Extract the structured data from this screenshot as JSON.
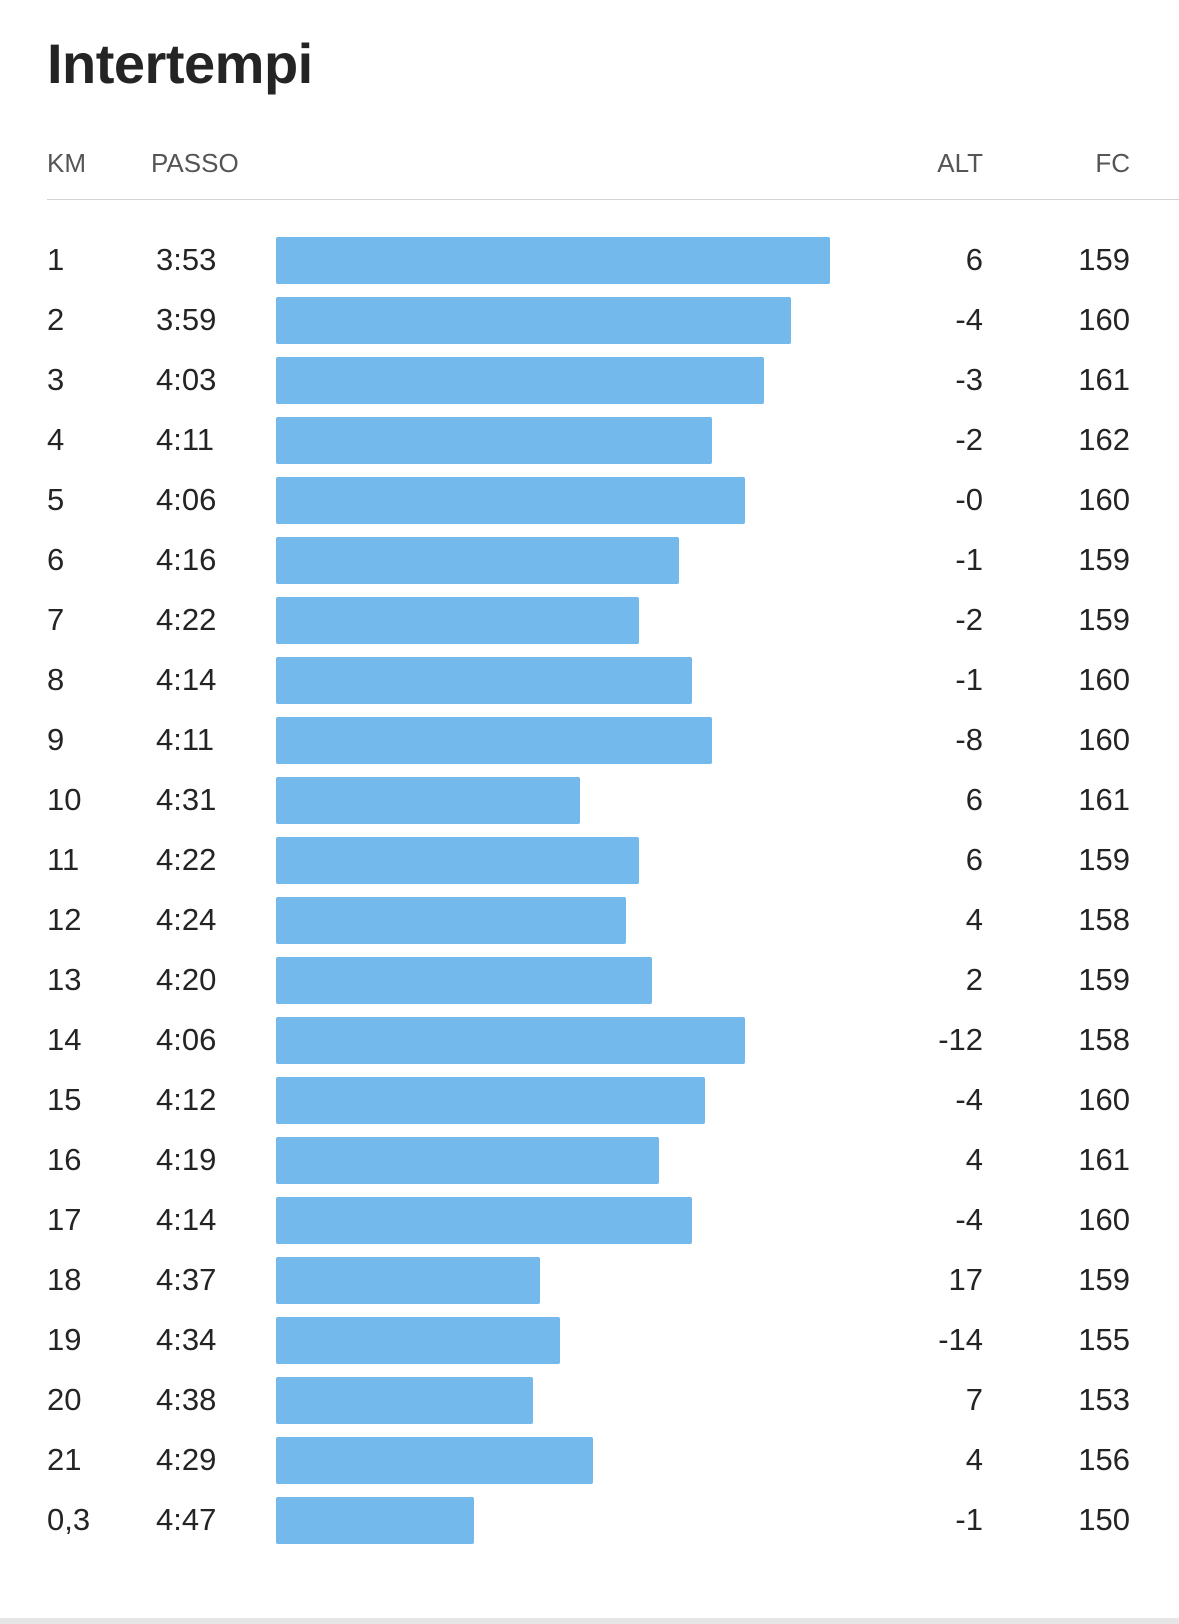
{
  "title": "Intertempi",
  "columns": {
    "km": "KM",
    "pace": "PASSO",
    "alt": "ALT",
    "hr": "FC"
  },
  "bar_color": "#74b9eb",
  "splits": [
    {
      "km": "1",
      "pace": "3:53",
      "pace_seconds": 233,
      "alt": "6",
      "hr": "159"
    },
    {
      "km": "2",
      "pace": "3:59",
      "pace_seconds": 239,
      "alt": "-4",
      "hr": "160"
    },
    {
      "km": "3",
      "pace": "4:03",
      "pace_seconds": 243,
      "alt": "-3",
      "hr": "161"
    },
    {
      "km": "4",
      "pace": "4:11",
      "pace_seconds": 251,
      "alt": "-2",
      "hr": "162"
    },
    {
      "km": "5",
      "pace": "4:06",
      "pace_seconds": 246,
      "alt": "-0",
      "hr": "160"
    },
    {
      "km": "6",
      "pace": "4:16",
      "pace_seconds": 256,
      "alt": "-1",
      "hr": "159"
    },
    {
      "km": "7",
      "pace": "4:22",
      "pace_seconds": 262,
      "alt": "-2",
      "hr": "159"
    },
    {
      "km": "8",
      "pace": "4:14",
      "pace_seconds": 254,
      "alt": "-1",
      "hr": "160"
    },
    {
      "km": "9",
      "pace": "4:11",
      "pace_seconds": 251,
      "alt": "-8",
      "hr": "160"
    },
    {
      "km": "10",
      "pace": "4:31",
      "pace_seconds": 271,
      "alt": "6",
      "hr": "161"
    },
    {
      "km": "11",
      "pace": "4:22",
      "pace_seconds": 262,
      "alt": "6",
      "hr": "159"
    },
    {
      "km": "12",
      "pace": "4:24",
      "pace_seconds": 264,
      "alt": "4",
      "hr": "158"
    },
    {
      "km": "13",
      "pace": "4:20",
      "pace_seconds": 260,
      "alt": "2",
      "hr": "159"
    },
    {
      "km": "14",
      "pace": "4:06",
      "pace_seconds": 246,
      "alt": "-12",
      "hr": "158"
    },
    {
      "km": "15",
      "pace": "4:12",
      "pace_seconds": 252,
      "alt": "-4",
      "hr": "160"
    },
    {
      "km": "16",
      "pace": "4:19",
      "pace_seconds": 259,
      "alt": "4",
      "hr": "161"
    },
    {
      "km": "17",
      "pace": "4:14",
      "pace_seconds": 254,
      "alt": "-4",
      "hr": "160"
    },
    {
      "km": "18",
      "pace": "4:37",
      "pace_seconds": 277,
      "alt": "17",
      "hr": "159"
    },
    {
      "km": "19",
      "pace": "4:34",
      "pace_seconds": 274,
      "alt": "-14",
      "hr": "155"
    },
    {
      "km": "20",
      "pace": "4:38",
      "pace_seconds": 278,
      "alt": "7",
      "hr": "153"
    },
    {
      "km": "21",
      "pace": "4:29",
      "pace_seconds": 269,
      "alt": "4",
      "hr": "156"
    },
    {
      "km": "0,3",
      "pace": "4:47",
      "pace_seconds": 287,
      "alt": "-1",
      "hr": "150"
    }
  ]
}
